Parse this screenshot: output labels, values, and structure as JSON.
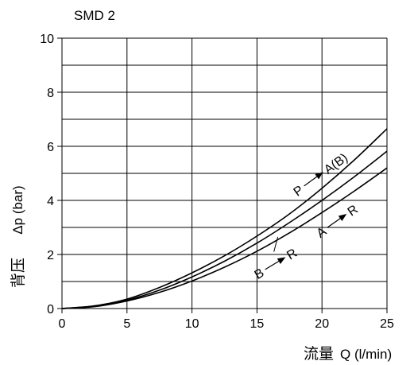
{
  "chart_data": {
    "type": "line",
    "title": "SMD 2",
    "xlabel_cn": "流量",
    "xlabel": "Q (l/min)",
    "ylabel": "Δp (bar)",
    "ylabel_cn": "背压",
    "xlim": [
      0,
      25
    ],
    "ylim": [
      0,
      10
    ],
    "x_ticks": [
      "0",
      "5",
      "10",
      "15",
      "20",
      "25"
    ],
    "y_ticks": [
      "0",
      "2",
      "4",
      "6",
      "8",
      "10"
    ],
    "grid": true,
    "series": [
      {
        "name": "P → A(B)",
        "x": [
          0,
          2.5,
          5,
          7.5,
          10,
          12.5,
          15,
          17.5,
          20,
          22.5,
          25
        ],
        "y": [
          0,
          0.1,
          0.35,
          0.78,
          1.32,
          1.95,
          2.68,
          3.5,
          4.45,
          5.5,
          6.65
        ]
      },
      {
        "name": "",
        "x": [
          0,
          2.5,
          5,
          7.5,
          10,
          12.5,
          15,
          17.5,
          20,
          22.5,
          25
        ],
        "y": [
          0,
          0.09,
          0.31,
          0.68,
          1.17,
          1.75,
          2.42,
          3.18,
          4.0,
          4.88,
          5.82
        ]
      },
      {
        "name": "A → R",
        "x": [
          0,
          2.5,
          5,
          7.5,
          10,
          12.5,
          15,
          17.5,
          20,
          22.5,
          25
        ],
        "y": [
          0,
          0.07,
          0.28,
          0.6,
          1.02,
          1.53,
          2.12,
          2.8,
          3.55,
          4.35,
          5.2
        ]
      }
    ],
    "annotations": [
      {
        "text_left": "P",
        "text_right": "A(B)",
        "x": 20.1,
        "y": 5.05,
        "angle": -36
      },
      {
        "text_left": "A",
        "text_right": "R",
        "x": 21.9,
        "y": 3.5,
        "angle": -35
      },
      {
        "text_left": "B",
        "text_right": "R",
        "x": 17.2,
        "y": 1.9,
        "angle": -31
      }
    ]
  }
}
